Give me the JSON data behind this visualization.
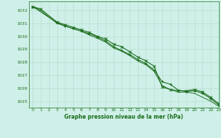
{
  "title": "Graphe pression niveau de la mer (hPa)",
  "bg_color": "#cff0e8",
  "grid_color": "#b8ddd0",
  "line_color": "#1a6b1a",
  "text_color": "#1a6b1a",
  "xlim": [
    -0.5,
    23
  ],
  "ylim": [
    1024.5,
    1032.7
  ],
  "yticks": [
    1025,
    1026,
    1027,
    1028,
    1029,
    1030,
    1031,
    1032
  ],
  "xticks": [
    0,
    1,
    2,
    3,
    4,
    5,
    6,
    7,
    8,
    9,
    10,
    11,
    12,
    13,
    14,
    15,
    16,
    17,
    18,
    19,
    20,
    21,
    22,
    23
  ],
  "series": [
    {
      "x": [
        0,
        1,
        3,
        4,
        5,
        6,
        7,
        8,
        9,
        10,
        11,
        12,
        13,
        14,
        15,
        16,
        17,
        18,
        19,
        20,
        21,
        22,
        23
      ],
      "y": [
        1032.3,
        1032.1,
        1031.1,
        1030.9,
        1030.7,
        1030.5,
        1030.3,
        1030.0,
        1029.8,
        1029.4,
        1029.2,
        1028.8,
        1028.4,
        1028.1,
        1027.7,
        1026.1,
        1025.9,
        1025.8,
        1025.8,
        1025.9,
        1025.7,
        1025.3,
        1024.8
      ],
      "marker": "x",
      "lw": 0.8,
      "ms": 2.5
    },
    {
      "x": [
        0,
        3,
        4,
        5,
        6,
        7,
        8,
        9,
        10,
        11,
        12,
        13,
        14,
        15,
        16,
        17,
        18,
        19,
        20,
        21,
        22,
        23
      ],
      "y": [
        1032.3,
        1031.05,
        1030.8,
        1030.6,
        1030.4,
        1030.2,
        1029.95,
        1029.65,
        1029.2,
        1028.9,
        1028.6,
        1028.2,
        1027.9,
        1027.4,
        1026.5,
        1026.3,
        1025.85,
        1025.75,
        1025.8,
        1025.6,
        1025.2,
        1024.7
      ],
      "marker": "+",
      "lw": 0.8,
      "ms": 2.5
    },
    {
      "x": [
        0,
        1,
        3,
        4,
        5,
        6,
        7,
        8,
        9,
        10,
        11,
        12,
        13,
        14,
        15,
        16,
        17,
        18,
        19,
        20,
        21,
        22,
        23
      ],
      "y": [
        1032.3,
        1032.0,
        1031.0,
        1030.8,
        1030.6,
        1030.4,
        1030.1,
        1029.85,
        1029.55,
        1029.1,
        1028.85,
        1028.5,
        1028.1,
        1027.8,
        1027.3,
        1026.2,
        1025.9,
        1025.7,
        1025.7,
        1025.6,
        1025.3,
        1025.0,
        1024.6
      ],
      "marker": "None",
      "lw": 0.7,
      "ms": 0
    }
  ]
}
